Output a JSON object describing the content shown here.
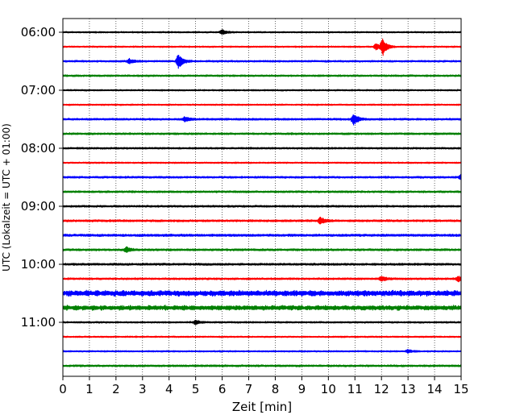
{
  "chart_data": {
    "type": "line",
    "subtype": "seismogram-helicorder",
    "xlabel": "Zeit  [min]",
    "ylabel": "UTC (Lokalzeit = UTC + 01:00)",
    "xlim": [
      0,
      15
    ],
    "x_ticks": [
      "0",
      "1",
      "2",
      "3",
      "4",
      "5",
      "6",
      "7",
      "8",
      "9",
      "10",
      "11",
      "12",
      "13",
      "14",
      "15"
    ],
    "grid": "vertical-dotted",
    "hour_labels": [
      "06:00",
      "07:00",
      "08:00",
      "09:00",
      "10:00",
      "11:00"
    ],
    "colors": [
      "#000000",
      "#ff0000",
      "#0000ff",
      "#008000"
    ],
    "rows": [
      {
        "start": "06:00",
        "color": "#000000",
        "amp": 1.0,
        "events": [
          {
            "t": 6.0,
            "a": 3
          }
        ]
      },
      {
        "start": "06:15",
        "color": "#ff0000",
        "amp": 1.0,
        "events": [
          {
            "t": 12.05,
            "a": 10
          },
          {
            "t": 11.8,
            "a": 4
          }
        ]
      },
      {
        "start": "06:30",
        "color": "#0000ff",
        "amp": 1.2,
        "events": [
          {
            "t": 4.35,
            "a": 9
          },
          {
            "t": 2.5,
            "a": 2.5
          }
        ]
      },
      {
        "start": "06:45",
        "color": "#008000",
        "amp": 1.2,
        "events": []
      },
      {
        "start": "07:00",
        "color": "#000000",
        "amp": 1.0,
        "events": []
      },
      {
        "start": "07:15",
        "color": "#ff0000",
        "amp": 1.0,
        "events": []
      },
      {
        "start": "07:30",
        "color": "#0000ff",
        "amp": 1.3,
        "events": [
          {
            "t": 10.95,
            "a": 7
          },
          {
            "t": 4.6,
            "a": 3
          }
        ]
      },
      {
        "start": "07:45",
        "color": "#008000",
        "amp": 1.3,
        "events": []
      },
      {
        "start": "08:00",
        "color": "#000000",
        "amp": 1.2,
        "events": []
      },
      {
        "start": "08:15",
        "color": "#ff0000",
        "amp": 1.0,
        "events": []
      },
      {
        "start": "08:30",
        "color": "#0000ff",
        "amp": 1.3,
        "events": [
          {
            "t": 15.0,
            "a": 4
          }
        ]
      },
      {
        "start": "08:45",
        "color": "#008000",
        "amp": 1.3,
        "events": []
      },
      {
        "start": "09:00",
        "color": "#000000",
        "amp": 1.3,
        "events": []
      },
      {
        "start": "09:15",
        "color": "#ff0000",
        "amp": 1.4,
        "events": [
          {
            "t": 9.7,
            "a": 4
          }
        ]
      },
      {
        "start": "09:30",
        "color": "#0000ff",
        "amp": 1.6,
        "events": []
      },
      {
        "start": "09:45",
        "color": "#008000",
        "amp": 1.4,
        "events": [
          {
            "t": 2.4,
            "a": 3
          }
        ]
      },
      {
        "start": "10:00",
        "color": "#000000",
        "amp": 1.4,
        "events": []
      },
      {
        "start": "10:15",
        "color": "#ff0000",
        "amp": 1.3,
        "events": [
          {
            "t": 12.0,
            "a": 3
          },
          {
            "t": 14.9,
            "a": 3
          }
        ]
      },
      {
        "start": "10:30",
        "color": "#0000ff",
        "amp": 4.0,
        "events": []
      },
      {
        "start": "10:45",
        "color": "#008000",
        "amp": 3.4,
        "events": []
      },
      {
        "start": "11:00",
        "color": "#000000",
        "amp": 1.1,
        "events": [
          {
            "t": 5.0,
            "a": 2.5
          }
        ]
      },
      {
        "start": "11:15",
        "color": "#ff0000",
        "amp": 1.0,
        "events": []
      },
      {
        "start": "11:30",
        "color": "#0000ff",
        "amp": 1.0,
        "events": [
          {
            "t": 13.0,
            "a": 2
          }
        ]
      },
      {
        "start": "11:45",
        "color": "#008000",
        "amp": 1.3,
        "events": []
      }
    ]
  }
}
